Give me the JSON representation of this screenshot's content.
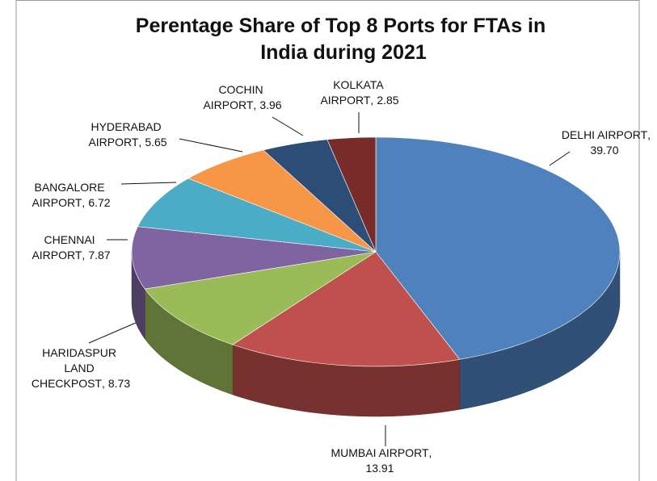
{
  "chart_data": {
    "type": "pie3d",
    "title": "Perentage Share of Top 8 Ports for FTAs in India during 2021",
    "categories": [
      "DELHI AIRPORT",
      "MUMBAI AIRPORT",
      "HARIDASPUR LAND CHECKPOST",
      "CHENNAI AIRPORT",
      "BANGALORE AIRPORT",
      "HYDERABAD AIRPORT",
      "COCHIN AIRPORT",
      "KOLKATA AIRPORT"
    ],
    "values": [
      39.7,
      13.91,
      8.73,
      7.87,
      6.72,
      5.65,
      3.96,
      2.85
    ],
    "value_labels": [
      "39.70",
      "13.91",
      "8.73",
      "7.87",
      "6.72",
      "5.65",
      "3.96",
      "2.85"
    ],
    "colors": [
      "#4f81bd",
      "#c0504d",
      "#9bbb59",
      "#8064a2",
      "#4bacc6",
      "#f79646",
      "#2c4d75",
      "#772c2a"
    ]
  }
}
